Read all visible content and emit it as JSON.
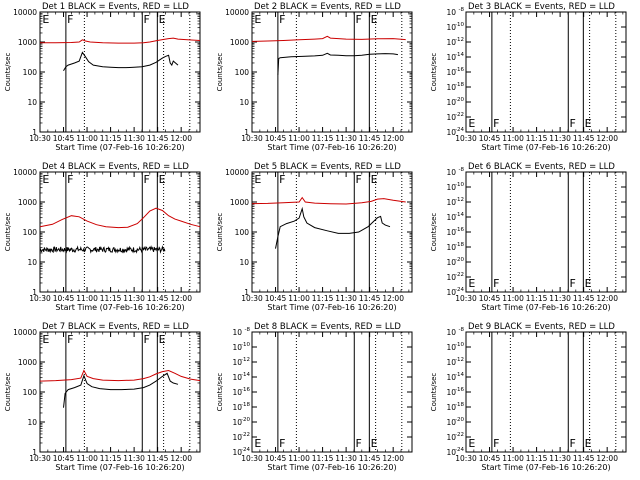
{
  "figure": {
    "panel_title_suffix": " BLACK = Events, RED = LLD",
    "xlabel": "Start Time (07-Feb-16 10:26:20)",
    "ylabel": "Counts/sec",
    "x_ticks": [
      "10:30",
      "10:45",
      "11:00",
      "11:15",
      "11:30",
      "11:45",
      "12:00"
    ],
    "x_tick_minutes": [
      30,
      45,
      60,
      75,
      90,
      105,
      120
    ],
    "xlim_minutes": [
      30,
      132
    ],
    "colors": {
      "events": "#000000",
      "lld": "#cc0000",
      "axes": "#000000"
    },
    "vlines_solid_minutes": [
      46.5,
      95.2,
      104.8
    ],
    "vlines_dotted_minutes": [
      58.3,
      108.8,
      125.5
    ],
    "flag_labels": {
      "E1": {
        "text": "E",
        "x_minutes": 31.5
      },
      "F1": {
        "text": "F",
        "x_minutes": 47.3
      },
      "F2": {
        "text": "F",
        "x_minutes": 96.0
      },
      "E2": {
        "text": "E",
        "x_minutes": 105.6
      }
    }
  },
  "chart_data": [
    {
      "type": "line",
      "title": "Det 1",
      "ylabel": "Counts/sec",
      "xlabel": "Start Time (07-Feb-16 10:26:20)",
      "yscale": "log",
      "ylim": [
        1,
        10000
      ],
      "y_ticks": [
        "1",
        "10",
        "100",
        "1000",
        "10000"
      ],
      "series": [
        {
          "role": "lld",
          "color": "#cc0000",
          "x": [
            30,
            40,
            50,
            55,
            57,
            59,
            62,
            70,
            80,
            90,
            96,
            100,
            104,
            108,
            112,
            115,
            118,
            124,
            132
          ],
          "y": [
            950,
            950,
            960,
            1000,
            1180,
            1080,
            1000,
            950,
            920,
            920,
            950,
            1000,
            1100,
            1200,
            1300,
            1350,
            1250,
            1180,
            1120
          ]
        },
        {
          "role": "events",
          "color": "#000000",
          "x": [
            45,
            46.5,
            48,
            52,
            55,
            57,
            59,
            61,
            64,
            70,
            75,
            80,
            85,
            90,
            95,
            100,
            104,
            108,
            110,
            112,
            113,
            114,
            115,
            118
          ],
          "y": [
            110,
            150,
            170,
            200,
            230,
            450,
            320,
            220,
            170,
            150,
            145,
            140,
            140,
            145,
            150,
            170,
            210,
            290,
            330,
            360,
            200,
            170,
            230,
            170
          ]
        }
      ]
    },
    {
      "type": "line",
      "title": "Det 2",
      "ylabel": "Counts/sec",
      "xlabel": "Start Time (07-Feb-16 10:26:20)",
      "yscale": "log",
      "ylim": [
        1,
        10000
      ],
      "y_ticks": [
        "1",
        "10",
        "100",
        "1000",
        "10000"
      ],
      "series": [
        {
          "role": "lld",
          "color": "#cc0000",
          "x": [
            30,
            40,
            50,
            60,
            70,
            75,
            78,
            80,
            85,
            90,
            100,
            110,
            120,
            128
          ],
          "y": [
            1050,
            1080,
            1120,
            1180,
            1250,
            1300,
            1550,
            1350,
            1300,
            1250,
            1220,
            1280,
            1300,
            1200
          ]
        },
        {
          "role": "events",
          "color": "#000000",
          "x": [
            46.5,
            47,
            48,
            55,
            62,
            70,
            75,
            78,
            80,
            85,
            90,
            95,
            100,
            105,
            110,
            115,
            120,
            123
          ],
          "y": [
            80,
            280,
            300,
            320,
            330,
            345,
            360,
            420,
            370,
            360,
            350,
            350,
            360,
            390,
            400,
            410,
            400,
            380
          ]
        }
      ]
    },
    {
      "type": "line",
      "title": "Det 3",
      "ylabel": "Counts/sec",
      "xlabel": "Start Time (07-Feb-16 10:26:20)",
      "yscale": "log",
      "ylim": [
        1e-24,
        1e-08
      ],
      "ticks_exponent": true,
      "y_ticks": [
        "10",
        "10",
        "10",
        "10",
        "10",
        "10",
        "10",
        "10",
        "10"
      ],
      "y_tick_exponents": [
        "-24",
        "-22",
        "-20",
        "-18",
        "-16",
        "-14",
        "-12",
        "-10",
        "-8"
      ],
      "series": []
    },
    {
      "type": "line",
      "title": "Det 4",
      "ylabel": "Counts/sec",
      "xlabel": "Start Time (07-Feb-16 10:26:20)",
      "yscale": "log",
      "ylim": [
        1,
        10000
      ],
      "y_ticks": [
        "1",
        "10",
        "100",
        "1000",
        "10000"
      ],
      "series": [
        {
          "role": "lld",
          "color": "#cc0000",
          "x": [
            30,
            38,
            44,
            50,
            55,
            60,
            66,
            72,
            80,
            86,
            92,
            96,
            100,
            104,
            108,
            112,
            116,
            120,
            126,
            132
          ],
          "y": [
            150,
            180,
            260,
            350,
            320,
            230,
            175,
            150,
            140,
            145,
            190,
            300,
            500,
            620,
            520,
            350,
            270,
            230,
            180,
            150
          ]
        },
        {
          "role": "events",
          "color": "#000000",
          "x": [
            30,
            110
          ],
          "y": [
            26,
            26
          ],
          "noise": 0.18
        }
      ]
    },
    {
      "type": "line",
      "title": "Det 5",
      "ylabel": "Counts/sec",
      "xlabel": "Start Time (07-Feb-16 10:26:20)",
      "yscale": "log",
      "ylim": [
        1,
        10000
      ],
      "y_ticks": [
        "1",
        "10",
        "100",
        "1000",
        "10000"
      ],
      "series": [
        {
          "role": "lld",
          "color": "#cc0000",
          "x": [
            30,
            40,
            50,
            60,
            62,
            64,
            70,
            80,
            90,
            100,
            106,
            110,
            114,
            120,
            128
          ],
          "y": [
            880,
            900,
            950,
            1000,
            1400,
            1000,
            920,
            880,
            860,
            950,
            1050,
            1250,
            1300,
            1150,
            1000
          ]
        },
        {
          "role": "events",
          "color": "#000000",
          "x": [
            45,
            46.5,
            48,
            52,
            57,
            60,
            62,
            63,
            65,
            70,
            78,
            85,
            92,
            98,
            104,
            108,
            110,
            112,
            113,
            115,
            118
          ],
          "y": [
            28,
            70,
            150,
            190,
            230,
            290,
            600,
            320,
            200,
            140,
            110,
            90,
            90,
            100,
            150,
            240,
            300,
            330,
            200,
            170,
            150
          ]
        }
      ]
    },
    {
      "type": "line",
      "title": "Det 6",
      "ylabel": "Counts/sec",
      "xlabel": "Start Time (07-Feb-16 10:26:20)",
      "yscale": "log",
      "ylim": [
        1e-24,
        1e-08
      ],
      "ticks_exponent": true,
      "y_ticks": [
        "10",
        "10",
        "10",
        "10",
        "10",
        "10",
        "10",
        "10",
        "10"
      ],
      "y_tick_exponents": [
        "-24",
        "-22",
        "-20",
        "-18",
        "-16",
        "-14",
        "-12",
        "-10",
        "-8"
      ],
      "series": []
    },
    {
      "type": "line",
      "title": "Det 7",
      "ylabel": "Counts/sec",
      "xlabel": "Start Time (07-Feb-16 10:26:20)",
      "yscale": "log",
      "ylim": [
        1,
        10000
      ],
      "y_ticks": [
        "1",
        "10",
        "100",
        "1000",
        "10000"
      ],
      "series": [
        {
          "role": "lld",
          "color": "#cc0000",
          "x": [
            30,
            40,
            50,
            56,
            58,
            60,
            64,
            70,
            80,
            90,
            96,
            100,
            104,
            108,
            112,
            116,
            120,
            126,
            132
          ],
          "y": [
            230,
            240,
            260,
            290,
            520,
            330,
            280,
            250,
            240,
            250,
            280,
            320,
            400,
            480,
            520,
            420,
            330,
            270,
            240
          ]
        },
        {
          "role": "events",
          "color": "#000000",
          "x": [
            45,
            46,
            48,
            52,
            56,
            58,
            60,
            63,
            68,
            75,
            82,
            90,
            96,
            100,
            104,
            108,
            111,
            113,
            115,
            118
          ],
          "y": [
            30,
            90,
            120,
            140,
            170,
            350,
            190,
            150,
            130,
            120,
            120,
            125,
            140,
            170,
            230,
            330,
            420,
            230,
            200,
            180
          ]
        }
      ]
    },
    {
      "type": "line",
      "title": "Det 8",
      "ylabel": "Counts/sec",
      "xlabel": "Start Time (07-Feb-16 10:26:20)",
      "yscale": "log",
      "ylim": [
        1e-24,
        1e-08
      ],
      "ticks_exponent": true,
      "y_ticks": [
        "10",
        "10",
        "10",
        "10",
        "10",
        "10",
        "10",
        "10",
        "10"
      ],
      "y_tick_exponents": [
        "-24",
        "-22",
        "-20",
        "-18",
        "-16",
        "-14",
        "-12",
        "-10",
        "-8"
      ],
      "series": []
    },
    {
      "type": "line",
      "title": "Det 9",
      "ylabel": "Counts/sec",
      "xlabel": "Start Time (07-Feb-16 10:26:20)",
      "yscale": "log",
      "ylim": [
        1e-24,
        1e-08
      ],
      "ticks_exponent": true,
      "y_ticks": [
        "10",
        "10",
        "10",
        "10",
        "10",
        "10",
        "10",
        "10",
        "10"
      ],
      "y_tick_exponents": [
        "-24",
        "-22",
        "-20",
        "-18",
        "-16",
        "-14",
        "-12",
        "-10",
        "-8"
      ],
      "series": []
    }
  ]
}
